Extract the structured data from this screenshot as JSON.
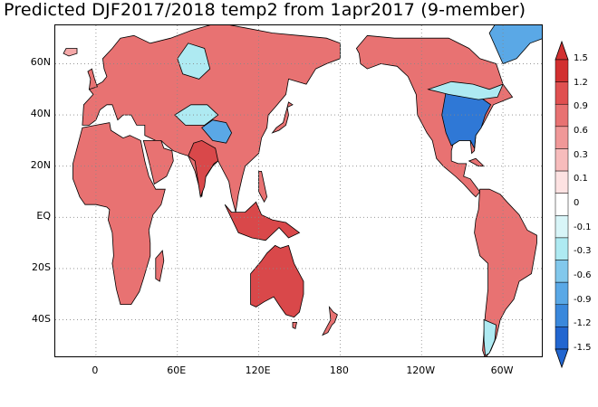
{
  "title": "Predicted DJF2017/2018 temp2 from 1apr2017 (9-member)",
  "y_axis": {
    "labels": [
      {
        "text": "60N",
        "lat": 60
      },
      {
        "text": "40N",
        "lat": 40
      },
      {
        "text": "20N",
        "lat": 20
      },
      {
        "text": "EQ",
        "lat": 0
      },
      {
        "text": "20S",
        "lat": -20
      },
      {
        "text": "40S",
        "lat": -40
      }
    ]
  },
  "x_axis": {
    "labels": [
      {
        "text": "0",
        "lon": 0
      },
      {
        "text": "60E",
        "lon": 60
      },
      {
        "text": "120E",
        "lon": 120
      },
      {
        "text": "180",
        "lon": 180
      },
      {
        "text": "120W",
        "lon": 240
      },
      {
        "text": "60W",
        "lon": 300
      }
    ]
  },
  "colorbar": {
    "labels": [
      "1.5",
      "1.2",
      "0.9",
      "0.6",
      "0.3",
      "0.1",
      "0",
      "-0.1",
      "-0.3",
      "-0.6",
      "-0.9",
      "-1.2",
      "-1.5"
    ],
    "colors": [
      "#d23030",
      "#e05050",
      "#e87272",
      "#f09898",
      "#f7bcbc",
      "#fde2e2",
      "#ffffff",
      "#d8f5f8",
      "#aeeaf2",
      "#82c8ec",
      "#5aa8e6",
      "#3a88dc",
      "#2266d0"
    ]
  },
  "map": {
    "lon_range": [
      -30,
      330
    ],
    "lat_range": [
      -55,
      75
    ],
    "gridlines": "dotted",
    "ocean_color": "#ffffff",
    "land_colors": {
      "warm_strong": "#d9484a",
      "warm": "#e87272",
      "warm_light": "#f4a8a8",
      "neutral": "#ffffff",
      "cool_light": "#aeeaf2",
      "cool": "#5aa8e6",
      "cool_strong": "#2f78d6"
    },
    "border_color": "#000000"
  }
}
